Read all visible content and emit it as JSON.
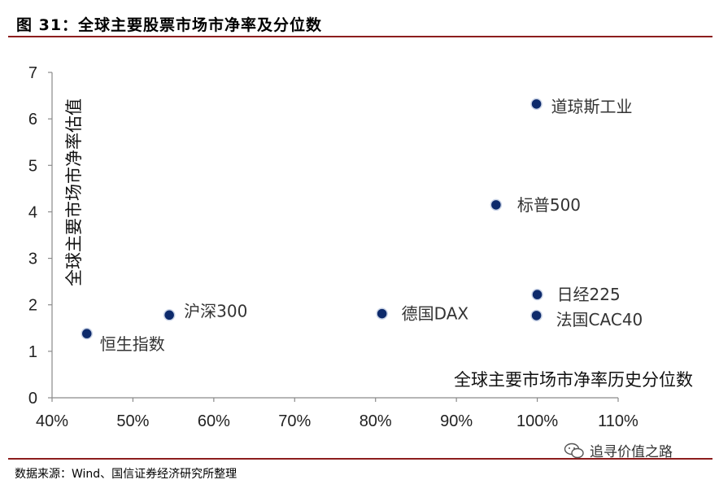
{
  "figure": {
    "title": "图 31：全球主要股票市场市净率及分位数",
    "source": "数据来源：Wind、国信证券经济研究所整理",
    "watermark": "追寻价值之路"
  },
  "chart_data": {
    "type": "scatter",
    "title": "",
    "xlabel": "全球主要市场市净率历史分位数",
    "ylabel": "全球主要市场市净率估值",
    "xlim": [
      0.4,
      1.1
    ],
    "ylim": [
      0,
      7
    ],
    "x_ticks": [
      0.4,
      0.5,
      0.6,
      0.7,
      0.8,
      0.9,
      1.0,
      1.1
    ],
    "x_tick_labels": [
      "40%",
      "50%",
      "60%",
      "70%",
      "80%",
      "90%",
      "100%",
      "110%"
    ],
    "y_ticks": [
      0,
      1,
      2,
      3,
      4,
      5,
      6,
      7
    ],
    "y_tick_labels": [
      "0",
      "1",
      "2",
      "3",
      "4",
      "5",
      "6",
      "7"
    ],
    "grid": false,
    "marker_color": "#0d2a6b",
    "points": [
      {
        "label": "恒生指数",
        "x": 0.443,
        "y": 1.38
      },
      {
        "label": "沪深300",
        "x": 0.545,
        "y": 1.78
      },
      {
        "label": "德国DAX",
        "x": 0.808,
        "y": 1.81
      },
      {
        "label": "标普500",
        "x": 0.949,
        "y": 4.15
      },
      {
        "label": "道琼斯工业",
        "x": 0.999,
        "y": 6.32
      },
      {
        "label": "日经225",
        "x": 1.0,
        "y": 2.22
      },
      {
        "label": "法国CAC40",
        "x": 0.999,
        "y": 1.77
      }
    ]
  }
}
